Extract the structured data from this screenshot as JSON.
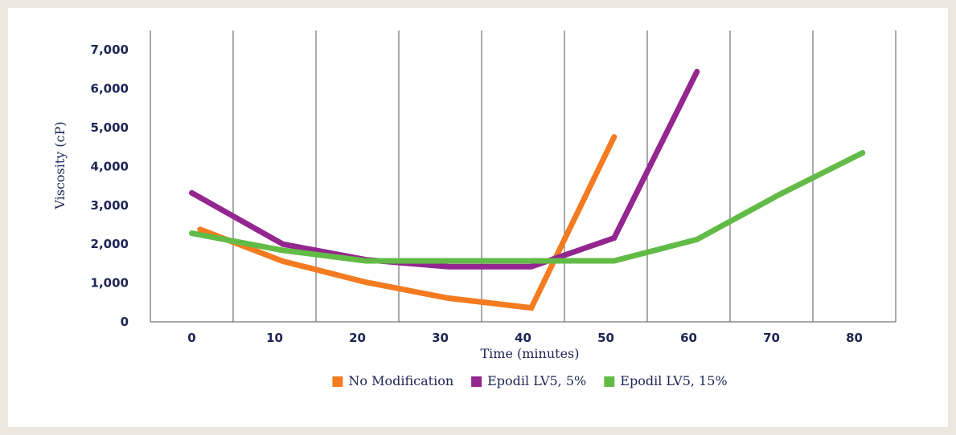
{
  "chart_data": {
    "type": "line",
    "xlabel": "Time (minutes)",
    "ylabel": "Viscosity (cP)",
    "xlim": [
      -5,
      85
    ],
    "ylim": [
      0,
      7500
    ],
    "x_ticks": [
      0,
      10,
      20,
      30,
      40,
      50,
      60,
      70,
      80
    ],
    "x_tick_labels": [
      "0",
      "10",
      "20",
      "30",
      "40",
      "50",
      "60",
      "70",
      "80"
    ],
    "y_ticks": [
      0,
      1000,
      2000,
      3000,
      4000,
      5000,
      6000,
      7000
    ],
    "y_tick_labels": [
      "0",
      "1,000",
      "2,000",
      "3,000",
      "4,000",
      "5,000",
      "6,000",
      "7,000"
    ],
    "grid": "vertical",
    "legend_position": "bottom",
    "series": [
      {
        "name": "No Modification",
        "color": "#f47b20",
        "points": [
          [
            1,
            2380
          ],
          [
            11,
            1560
          ],
          [
            21,
            1020
          ],
          [
            31,
            610
          ],
          [
            41,
            360
          ],
          [
            51,
            4760
          ]
        ]
      },
      {
        "name": "Epodil LV5, 5%",
        "color": "#93278f",
        "points": [
          [
            0,
            3320
          ],
          [
            11,
            2000
          ],
          [
            21,
            1600
          ],
          [
            31,
            1420
          ],
          [
            41,
            1420
          ],
          [
            51,
            2160
          ],
          [
            61,
            6440
          ]
        ]
      },
      {
        "name": "Epodil LV5, 15%",
        "color": "#62bb46",
        "points": [
          [
            0,
            2280
          ],
          [
            11,
            1840
          ],
          [
            21,
            1570
          ],
          [
            31,
            1570
          ],
          [
            41,
            1570
          ],
          [
            51,
            1570
          ],
          [
            61,
            2120
          ],
          [
            71,
            3280
          ],
          [
            81,
            4350
          ]
        ]
      }
    ]
  }
}
